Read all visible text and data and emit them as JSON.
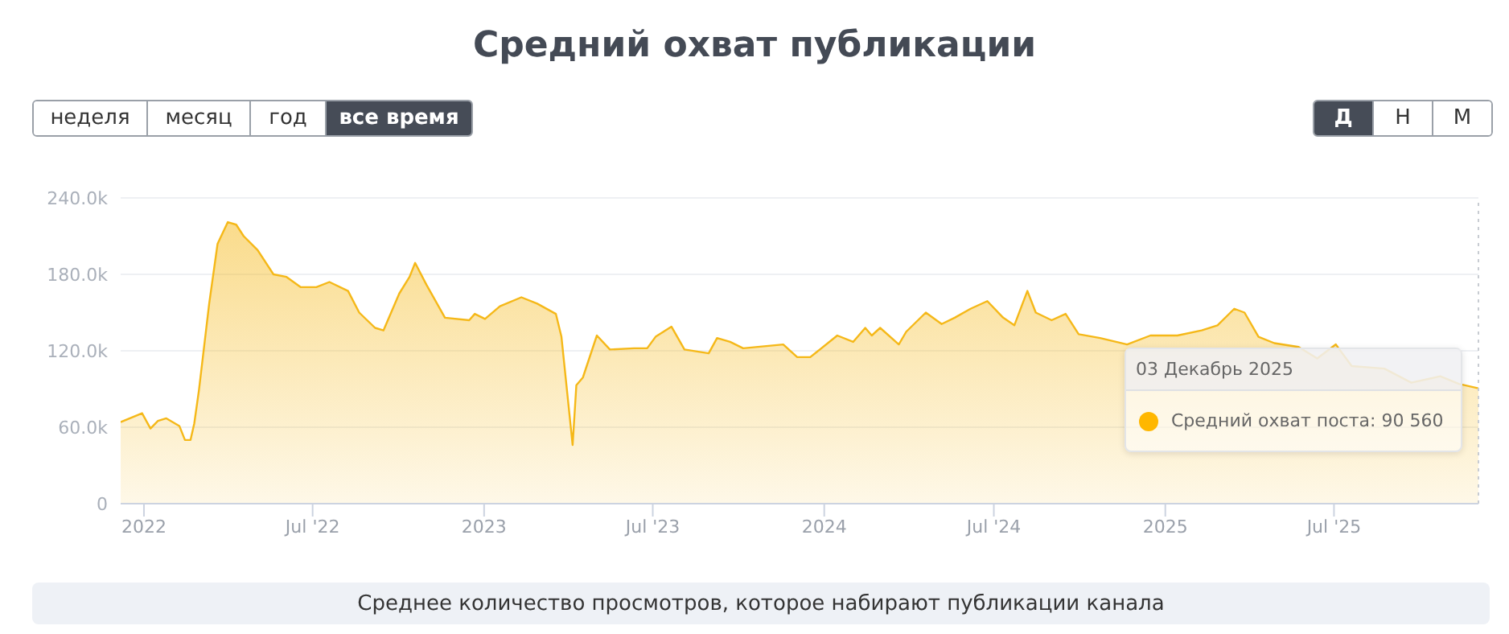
{
  "chart_data": {
    "type": "area",
    "title": "Средний охват публикации",
    "x": [
      "2021-12-07",
      "2021-12-30",
      "2022-01-08",
      "2022-01-16",
      "2022-01-25",
      "2022-02-08",
      "2022-02-14",
      "2022-02-20",
      "2022-02-24",
      "2022-03-01",
      "2022-03-12",
      "2022-03-21",
      "2022-04-01",
      "2022-04-10",
      "2022-04-18",
      "2022-05-03",
      "2022-05-20",
      "2022-06-03",
      "2022-06-18",
      "2022-07-05",
      "2022-07-19",
      "2022-08-08",
      "2022-08-20",
      "2022-09-06",
      "2022-09-15",
      "2022-10-02",
      "2022-10-13",
      "2022-10-19",
      "2022-10-31",
      "2022-11-20",
      "2022-12-16",
      "2022-12-22",
      "2023-01-02",
      "2023-01-18",
      "2023-02-10",
      "2023-02-27",
      "2023-03-19",
      "2023-03-25",
      "2023-04-06",
      "2023-04-10",
      "2023-04-17",
      "2023-05-02",
      "2023-05-16",
      "2023-06-11",
      "2023-06-25",
      "2023-07-04",
      "2023-07-21",
      "2023-08-04",
      "2023-08-30",
      "2023-09-08",
      "2023-09-22",
      "2023-10-06",
      "2023-11-18",
      "2023-12-03",
      "2023-12-17",
      "2024-01-15",
      "2024-02-01",
      "2024-02-14",
      "2024-02-21",
      "2024-03-01",
      "2024-03-21",
      "2024-03-29",
      "2024-04-19",
      "2024-05-06",
      "2024-05-20",
      "2024-06-06",
      "2024-06-24",
      "2024-07-11",
      "2024-07-23",
      "2024-08-06",
      "2024-08-15",
      "2024-09-01",
      "2024-09-16",
      "2024-09-30",
      "2024-10-23",
      "2024-11-21",
      "2024-12-16",
      "2025-01-14",
      "2025-02-09",
      "2025-02-26",
      "2025-03-16",
      "2025-03-27",
      "2025-04-11",
      "2025-04-28",
      "2025-05-24",
      "2025-06-13",
      "2025-07-03",
      "2025-07-20",
      "2025-08-24",
      "2025-09-22",
      "2025-10-23",
      "2025-11-12",
      "2025-12-03"
    ],
    "series": [
      {
        "color": "#f5b818",
        "values": [
          64000,
          71000,
          59000,
          65000,
          67000,
          61000,
          50000,
          50000,
          63000,
          89000,
          157000,
          204000,
          221000,
          219000,
          210000,
          199000,
          180000,
          178000,
          170000,
          170000,
          174000,
          167000,
          150000,
          138000,
          136000,
          165000,
          178000,
          189000,
          172000,
          146000,
          144000,
          149000,
          145000,
          155000,
          162000,
          157000,
          149000,
          131000,
          46000,
          93000,
          99000,
          132000,
          121000,
          122000,
          122000,
          131000,
          139000,
          121000,
          118000,
          130000,
          127000,
          122000,
          125000,
          115000,
          115000,
          132000,
          127000,
          138000,
          132000,
          138000,
          125000,
          135000,
          150000,
          141000,
          146000,
          153000,
          159000,
          146000,
          140000,
          167000,
          150000,
          144000,
          149000,
          133000,
          130000,
          125000,
          132000,
          132000,
          136000,
          140000,
          153000,
          150000,
          131000,
          126000,
          123000,
          114000,
          125000,
          108000,
          106000,
          95000,
          100000,
          94000,
          90560
        ]
      }
    ],
    "xlim": [
      "2021-12-07",
      "2025-12-03"
    ],
    "xticks": [
      {
        "value": "2022-01-01",
        "label": "2022"
      },
      {
        "value": "2022-07-01",
        "label": "Jul '22"
      },
      {
        "value": "2023-01-01",
        "label": "2023"
      },
      {
        "value": "2023-07-01",
        "label": "Jul '23"
      },
      {
        "value": "2024-01-01",
        "label": "2024"
      },
      {
        "value": "2024-07-01",
        "label": "Jul '24"
      },
      {
        "value": "2025-01-01",
        "label": "2025"
      },
      {
        "value": "2025-07-01",
        "label": "Jul '25"
      }
    ],
    "ylim": [
      0,
      240000
    ],
    "yticks": [
      0,
      {
        "value": 60000,
        "label": "60.0k"
      },
      {
        "value": 120000,
        "label": "120.0k"
      },
      {
        "value": 180000,
        "label": "180.0k"
      },
      {
        "value": 240000,
        "label": "240.0k"
      }
    ],
    "grid": "y",
    "ref_lines": [
      {
        "axis": "x",
        "value": "2025-12-03",
        "line_style": "dotted",
        "color": "#c8ccd2"
      }
    ],
    "annotations": [
      {
        "text": "03 Декабрь 2025"
      },
      {
        "text": "Средний охват поста: 90 560"
      },
      "Среднее количество просмотров, которое набирают публикации канала",
      "неделя",
      "месяц",
      "год",
      "все время",
      "Д",
      "Н",
      "М"
    ]
  }
}
